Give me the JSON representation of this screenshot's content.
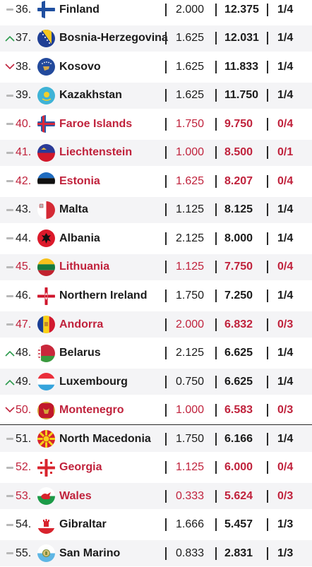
{
  "colors": {
    "accent_red": "#c0223c",
    "text_dark": "#1b1b1b",
    "shade": "#f4f4f6",
    "trend_up": "#2d9b4d",
    "trend_down": "#c0223c"
  },
  "rows": [
    {
      "trend": "same",
      "rank": "36.",
      "flag": "finland",
      "country": "Finland",
      "coef": "2.000",
      "points": "12.375",
      "record": "1/4",
      "red": false
    },
    {
      "trend": "up",
      "rank": "37.",
      "flag": "bosnia",
      "country": "Bosnia-Herzegovina",
      "coef": "1.625",
      "points": "12.031",
      "record": "1/4",
      "red": false
    },
    {
      "trend": "down",
      "rank": "38.",
      "flag": "kosovo",
      "country": "Kosovo",
      "coef": "1.625",
      "points": "11.833",
      "record": "1/4",
      "red": false
    },
    {
      "trend": "same",
      "rank": "39.",
      "flag": "kazakhstan",
      "country": "Kazakhstan",
      "coef": "1.625",
      "points": "11.750",
      "record": "1/4",
      "red": false
    },
    {
      "trend": "same",
      "rank": "40.",
      "flag": "faroe",
      "country": "Faroe Islands",
      "coef": "1.750",
      "points": "9.750",
      "record": "0/4",
      "red": true
    },
    {
      "trend": "same",
      "rank": "41.",
      "flag": "liechtenstein",
      "country": "Liechtenstein",
      "coef": "1.000",
      "points": "8.500",
      "record": "0/1",
      "red": true
    },
    {
      "trend": "same",
      "rank": "42.",
      "flag": "estonia",
      "country": "Estonia",
      "coef": "1.625",
      "points": "8.207",
      "record": "0/4",
      "red": true
    },
    {
      "trend": "same",
      "rank": "43.",
      "flag": "malta",
      "country": "Malta",
      "coef": "1.125",
      "points": "8.125",
      "record": "1/4",
      "red": false
    },
    {
      "trend": "same",
      "rank": "44.",
      "flag": "albania",
      "country": "Albania",
      "coef": "2.125",
      "points": "8.000",
      "record": "1/4",
      "red": false
    },
    {
      "trend": "same",
      "rank": "45.",
      "flag": "lithuania",
      "country": "Lithuania",
      "coef": "1.125",
      "points": "7.750",
      "record": "0/4",
      "red": true
    },
    {
      "trend": "same",
      "rank": "46.",
      "flag": "northern-ireland",
      "country": "Northern Ireland",
      "coef": "1.750",
      "points": "7.250",
      "record": "1/4",
      "red": false
    },
    {
      "trend": "same",
      "rank": "47.",
      "flag": "andorra",
      "country": "Andorra",
      "coef": "2.000",
      "points": "6.832",
      "record": "0/3",
      "red": true
    },
    {
      "trend": "up",
      "rank": "48.",
      "flag": "belarus",
      "country": "Belarus",
      "coef": "2.125",
      "points": "6.625",
      "record": "1/4",
      "red": false
    },
    {
      "trend": "up",
      "rank": "49.",
      "flag": "luxembourg",
      "country": "Luxembourg",
      "coef": "0.750",
      "points": "6.625",
      "record": "1/4",
      "red": false
    },
    {
      "trend": "down",
      "rank": "50.",
      "flag": "montenegro",
      "country": "Montenegro",
      "coef": "1.000",
      "points": "6.583",
      "record": "0/3",
      "red": true
    },
    {
      "trend": "same",
      "rank": "51.",
      "flag": "north-macedonia",
      "country": "North Macedonia",
      "coef": "1.750",
      "points": "6.166",
      "record": "1/4",
      "red": false
    },
    {
      "trend": "same",
      "rank": "52.",
      "flag": "georgia",
      "country": "Georgia",
      "coef": "1.125",
      "points": "6.000",
      "record": "0/4",
      "red": true
    },
    {
      "trend": "same",
      "rank": "53.",
      "flag": "wales",
      "country": "Wales",
      "coef": "0.333",
      "points": "5.624",
      "record": "0/3",
      "red": true
    },
    {
      "trend": "same",
      "rank": "54.",
      "flag": "gibraltar",
      "country": "Gibraltar",
      "coef": "1.666",
      "points": "5.457",
      "record": "1/3",
      "red": false
    },
    {
      "trend": "same",
      "rank": "55.",
      "flag": "san-marino",
      "country": "San Marino",
      "coef": "0.833",
      "points": "2.831",
      "record": "1/3",
      "red": false
    }
  ]
}
